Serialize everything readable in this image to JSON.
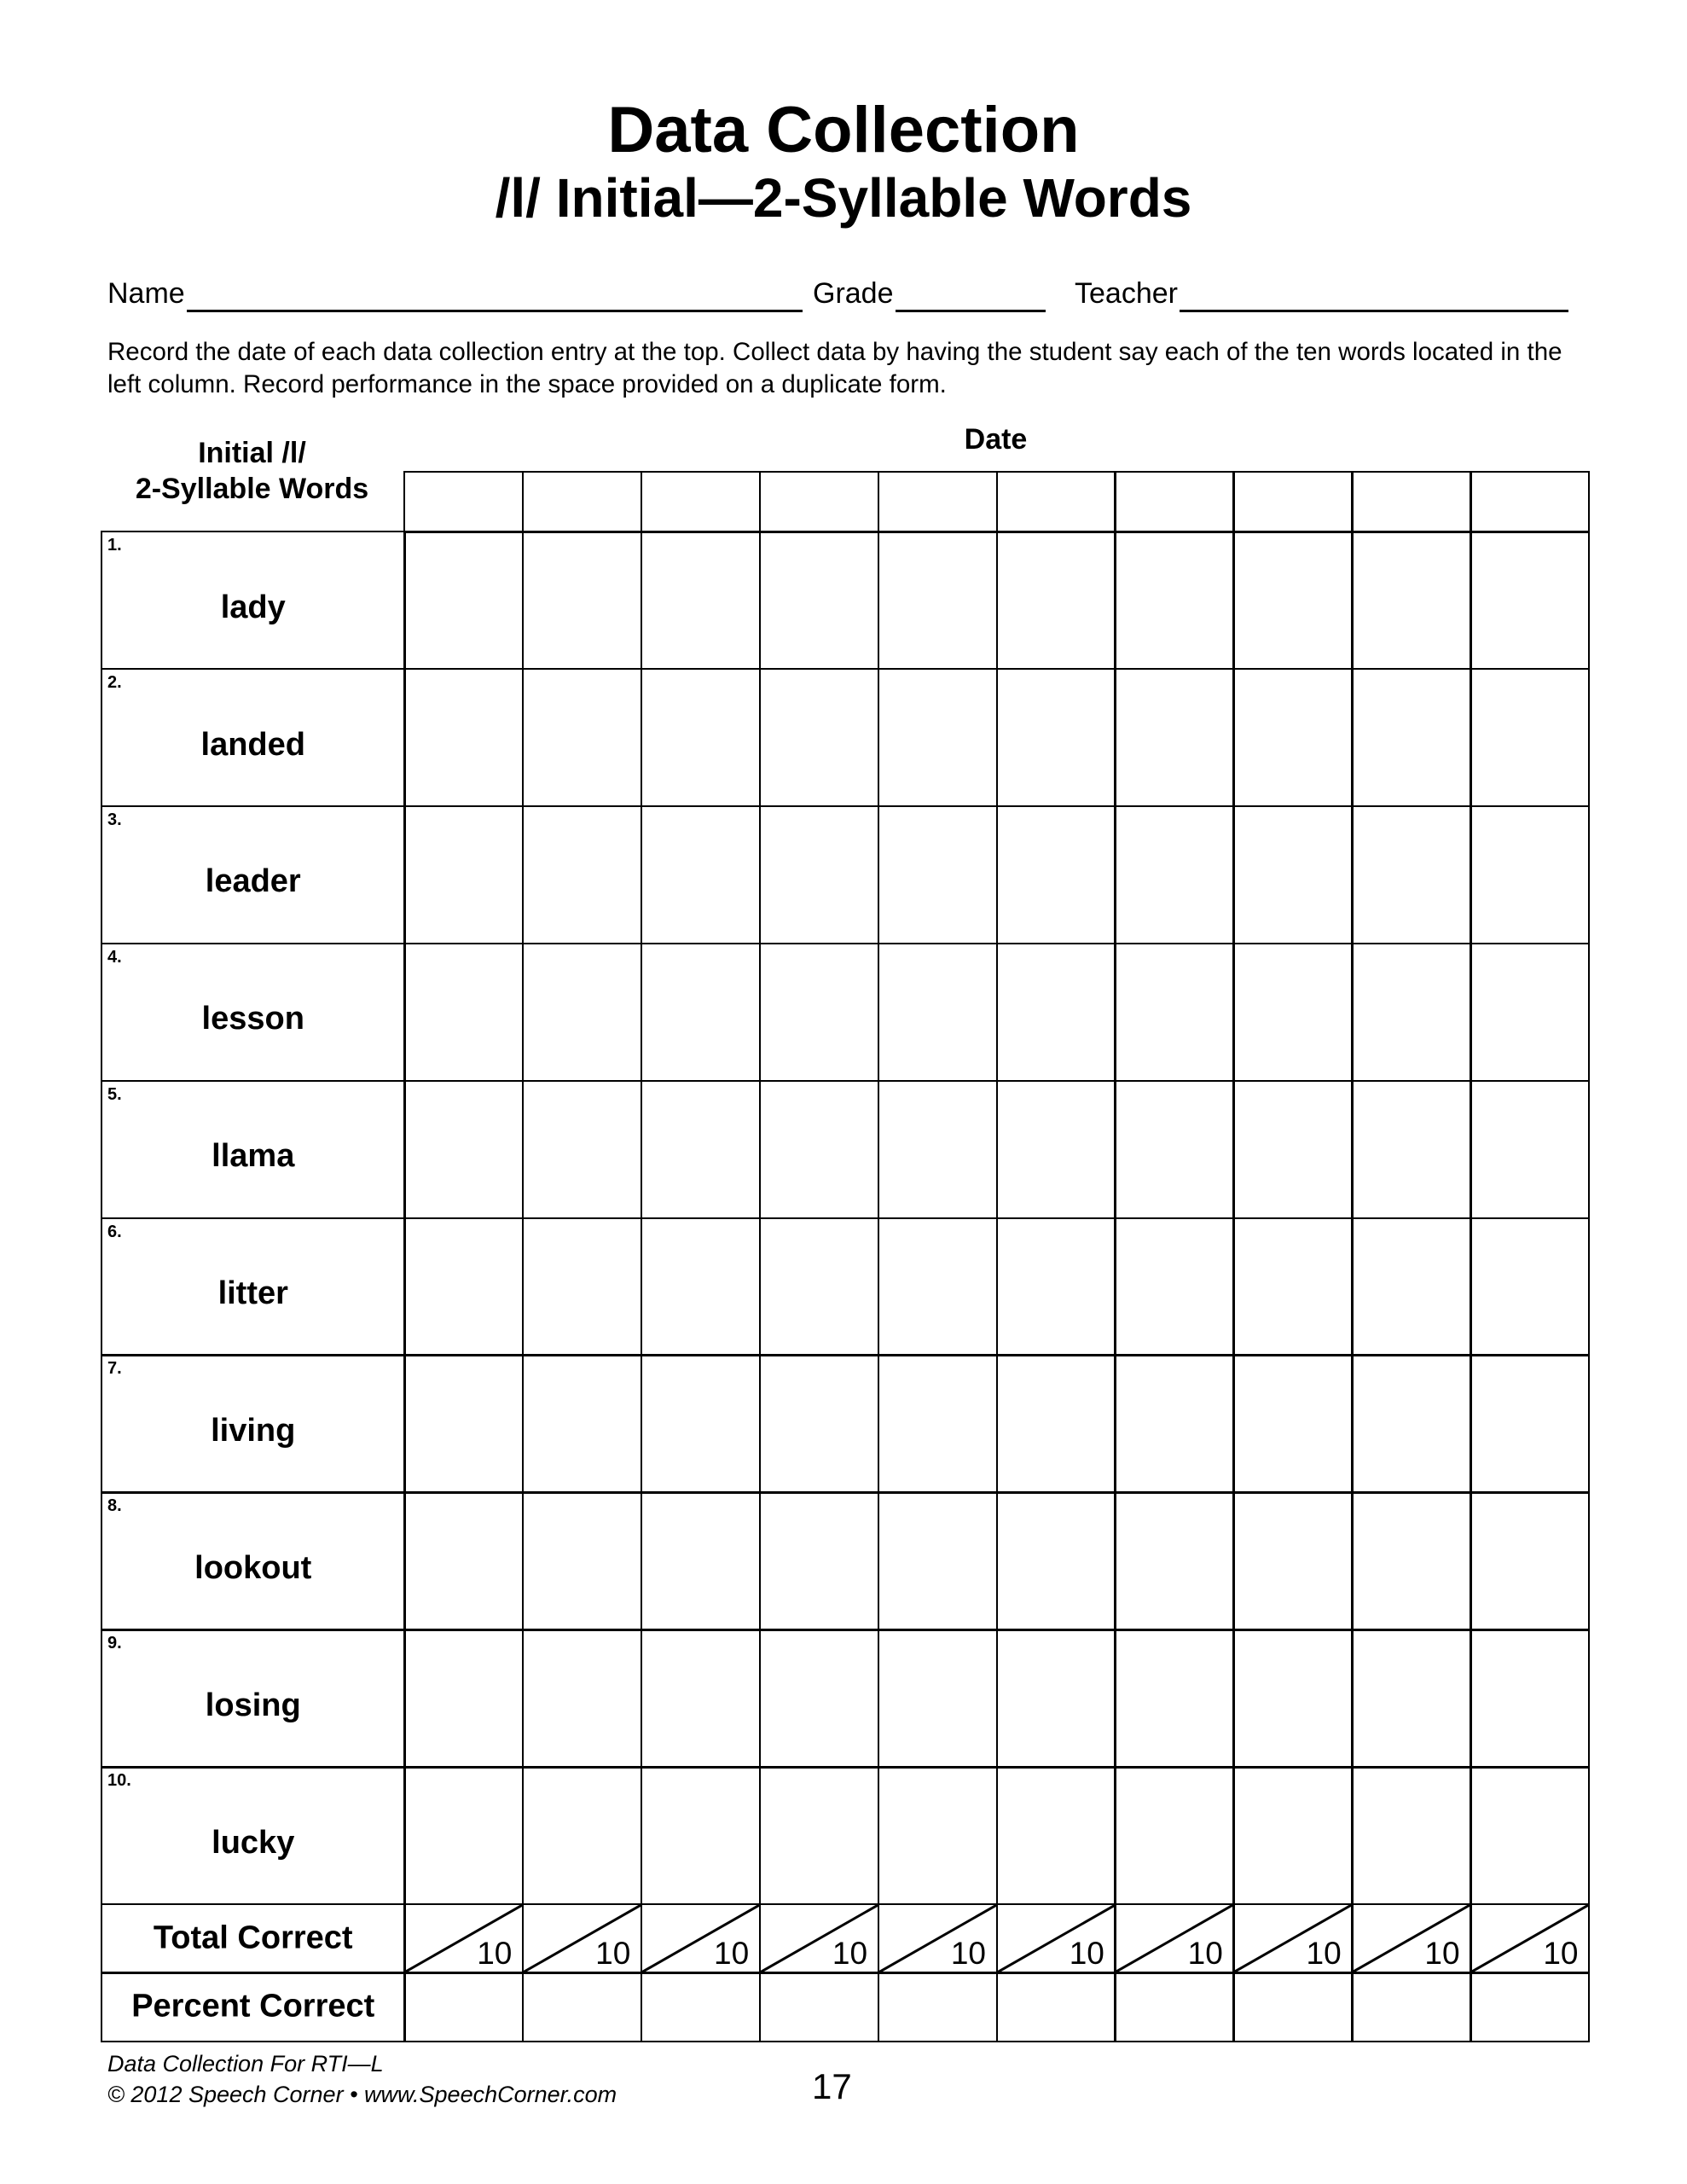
{
  "header": {
    "title": "Data Collection",
    "subtitle": "/l/ Initial—2-Syllable Words"
  },
  "fields": {
    "name_label": "Name",
    "grade_label": "Grade",
    "teacher_label": "Teacher"
  },
  "instructions": "Record the date of each data collection entry at the top.  Collect data by having the student say each of the ten words located in the left column.  Record performance in the space provided on a duplicate form.",
  "table": {
    "word_column_header_line1": "Initial /l/",
    "word_column_header_line2": "2-Syllable Words",
    "date_header": "Date",
    "date_column_count": 10,
    "rows": [
      {
        "number": "1.",
        "word": "lady"
      },
      {
        "number": "2.",
        "word": "landed"
      },
      {
        "number": "3.",
        "word": "leader"
      },
      {
        "number": "4.",
        "word": "lesson"
      },
      {
        "number": "5.",
        "word": "llama"
      },
      {
        "number": "6.",
        "word": "litter"
      },
      {
        "number": "7.",
        "word": "living"
      },
      {
        "number": "8.",
        "word": "lookout"
      },
      {
        "number": "9.",
        "word": "losing"
      },
      {
        "number": "10.",
        "word": "lucky"
      }
    ],
    "total_label": "Total Correct",
    "total_denominator": "10",
    "percent_label": "Percent Correct"
  },
  "footer": {
    "line1": "Data Collection For RTI—L",
    "line2": "© 2012 Speech Corner • www.SpeechCorner.com",
    "page_number": "17"
  }
}
